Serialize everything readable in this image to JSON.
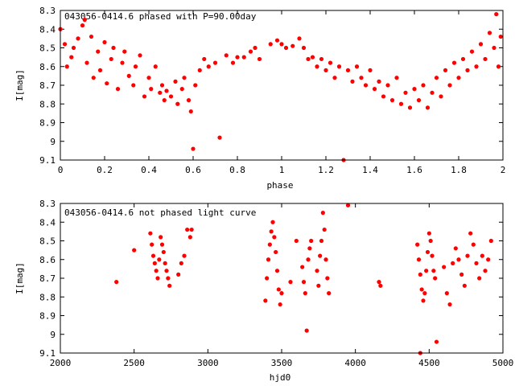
{
  "chart_data": [
    {
      "type": "scatter",
      "title": "043056-0414.6 phased with P=90.00day",
      "xlabel": "phase",
      "ylabel": "I[mag]",
      "xlim": [
        0,
        2
      ],
      "ylim": [
        9.1,
        8.3
      ],
      "y_inverted": true,
      "xticks": [
        "0",
        "0.2",
        "0.4",
        "0.6",
        "0.8",
        "1",
        "1.2",
        "1.4",
        "1.6",
        "1.8",
        "2"
      ],
      "xtick_values": [
        0,
        0.2,
        0.4,
        0.6,
        0.8,
        1.0,
        1.2,
        1.4,
        1.6,
        1.8,
        2.0
      ],
      "yticks": [
        "8.3",
        "8.4",
        "8.5",
        "8.6",
        "8.7",
        "8.8",
        "8.9",
        "9",
        "9.1"
      ],
      "ytick_values": [
        8.3,
        8.4,
        8.5,
        8.6,
        8.7,
        8.8,
        8.9,
        9.0,
        9.1
      ],
      "marker_color": "#ff0000",
      "grid": false,
      "points": [
        [
          0.0,
          8.4
        ],
        [
          0.02,
          8.48
        ],
        [
          0.03,
          8.6
        ],
        [
          0.05,
          8.55
        ],
        [
          0.06,
          8.5
        ],
        [
          0.08,
          8.45
        ],
        [
          0.1,
          8.38
        ],
        [
          0.11,
          8.35
        ],
        [
          0.12,
          8.58
        ],
        [
          0.14,
          8.44
        ],
        [
          0.15,
          8.66
        ],
        [
          0.17,
          8.52
        ],
        [
          0.18,
          8.62
        ],
        [
          0.2,
          8.47
        ],
        [
          0.21,
          8.69
        ],
        [
          0.23,
          8.56
        ],
        [
          0.24,
          8.5
        ],
        [
          0.26,
          8.72
        ],
        [
          0.28,
          8.58
        ],
        [
          0.29,
          8.52
        ],
        [
          0.31,
          8.65
        ],
        [
          0.33,
          8.7
        ],
        [
          0.34,
          8.6
        ],
        [
          0.36,
          8.54
        ],
        [
          0.38,
          8.76
        ],
        [
          0.4,
          8.66
        ],
        [
          0.41,
          8.72
        ],
        [
          0.43,
          8.6
        ],
        [
          0.45,
          8.74
        ],
        [
          0.46,
          8.7
        ],
        [
          0.47,
          8.78
        ],
        [
          0.48,
          8.73
        ],
        [
          0.5,
          8.76
        ],
        [
          0.52,
          8.68
        ],
        [
          0.53,
          8.8
        ],
        [
          0.55,
          8.72
        ],
        [
          0.56,
          8.66
        ],
        [
          0.58,
          8.78
        ],
        [
          0.59,
          8.84
        ],
        [
          0.6,
          9.04
        ],
        [
          0.61,
          8.7
        ],
        [
          0.63,
          8.62
        ],
        [
          0.65,
          8.56
        ],
        [
          0.67,
          8.6
        ],
        [
          0.7,
          8.58
        ],
        [
          0.72,
          8.98
        ],
        [
          0.75,
          8.54
        ],
        [
          0.78,
          8.58
        ],
        [
          0.8,
          8.55
        ],
        [
          0.83,
          8.55
        ],
        [
          0.86,
          8.52
        ],
        [
          0.88,
          8.5
        ],
        [
          0.9,
          8.56
        ],
        [
          0.95,
          8.48
        ],
        [
          0.98,
          8.46
        ],
        [
          1.0,
          8.48
        ],
        [
          1.02,
          8.5
        ],
        [
          1.05,
          8.49
        ],
        [
          1.08,
          8.45
        ],
        [
          1.1,
          8.5
        ],
        [
          1.12,
          8.56
        ],
        [
          1.14,
          8.55
        ],
        [
          1.16,
          8.6
        ],
        [
          1.18,
          8.56
        ],
        [
          1.2,
          8.62
        ],
        [
          1.22,
          8.58
        ],
        [
          1.24,
          8.66
        ],
        [
          1.26,
          8.6
        ],
        [
          1.28,
          9.1
        ],
        [
          1.3,
          8.62
        ],
        [
          1.32,
          8.68
        ],
        [
          1.34,
          8.6
        ],
        [
          1.36,
          8.66
        ],
        [
          1.38,
          8.7
        ],
        [
          1.4,
          8.62
        ],
        [
          1.42,
          8.72
        ],
        [
          1.44,
          8.68
        ],
        [
          1.46,
          8.76
        ],
        [
          1.48,
          8.7
        ],
        [
          1.5,
          8.78
        ],
        [
          1.52,
          8.66
        ],
        [
          1.54,
          8.8
        ],
        [
          1.56,
          8.74
        ],
        [
          1.58,
          8.82
        ],
        [
          1.6,
          8.72
        ],
        [
          1.62,
          8.78
        ],
        [
          1.64,
          8.7
        ],
        [
          1.66,
          8.82
        ],
        [
          1.68,
          8.74
        ],
        [
          1.7,
          8.66
        ],
        [
          1.72,
          8.76
        ],
        [
          1.74,
          8.62
        ],
        [
          1.76,
          8.7
        ],
        [
          1.78,
          8.58
        ],
        [
          1.8,
          8.66
        ],
        [
          1.82,
          8.56
        ],
        [
          1.84,
          8.62
        ],
        [
          1.86,
          8.52
        ],
        [
          1.88,
          8.6
        ],
        [
          1.9,
          8.48
        ],
        [
          1.92,
          8.56
        ],
        [
          1.94,
          8.42
        ],
        [
          1.96,
          8.5
        ],
        [
          1.97,
          8.32
        ],
        [
          1.98,
          8.6
        ],
        [
          1.99,
          8.44
        ]
      ]
    },
    {
      "type": "scatter",
      "title": "043056-0414.6 not phased light curve",
      "xlabel": "hjd0",
      "ylabel": "I[mag]",
      "xlim": [
        2000,
        5000
      ],
      "ylim": [
        9.1,
        8.3
      ],
      "y_inverted": true,
      "xticks": [
        "2000",
        "2500",
        "3000",
        "3500",
        "4000",
        "4500",
        "5000"
      ],
      "xtick_values": [
        2000,
        2500,
        3000,
        3500,
        4000,
        4500,
        5000
      ],
      "yticks": [
        "8.3",
        "8.4",
        "8.5",
        "8.6",
        "8.7",
        "8.8",
        "8.9",
        "9",
        "9.1"
      ],
      "ytick_values": [
        8.3,
        8.4,
        8.5,
        8.6,
        8.7,
        8.8,
        8.9,
        9.0,
        9.1
      ],
      "marker_color": "#ff0000",
      "grid": false,
      "points": [
        [
          2380,
          8.72
        ],
        [
          2500,
          8.55
        ],
        [
          2610,
          8.46
        ],
        [
          2620,
          8.52
        ],
        [
          2630,
          8.58
        ],
        [
          2640,
          8.62
        ],
        [
          2650,
          8.66
        ],
        [
          2660,
          8.7
        ],
        [
          2670,
          8.6
        ],
        [
          2680,
          8.48
        ],
        [
          2690,
          8.52
        ],
        [
          2700,
          8.56
        ],
        [
          2710,
          8.62
        ],
        [
          2720,
          8.66
        ],
        [
          2730,
          8.7
        ],
        [
          2740,
          8.74
        ],
        [
          2800,
          8.68
        ],
        [
          2820,
          8.62
        ],
        [
          2840,
          8.58
        ],
        [
          2860,
          8.44
        ],
        [
          2880,
          8.48
        ],
        [
          2890,
          8.44
        ],
        [
          3390,
          8.82
        ],
        [
          3400,
          8.7
        ],
        [
          3410,
          8.6
        ],
        [
          3420,
          8.52
        ],
        [
          3430,
          8.45
        ],
        [
          3440,
          8.4
        ],
        [
          3450,
          8.48
        ],
        [
          3460,
          8.56
        ],
        [
          3470,
          8.66
        ],
        [
          3480,
          8.76
        ],
        [
          3490,
          8.84
        ],
        [
          3500,
          8.78
        ],
        [
          3560,
          8.72
        ],
        [
          3600,
          8.5
        ],
        [
          3640,
          8.64
        ],
        [
          3650,
          8.72
        ],
        [
          3660,
          8.78
        ],
        [
          3670,
          8.98
        ],
        [
          3680,
          8.6
        ],
        [
          3690,
          8.54
        ],
        [
          3700,
          8.5
        ],
        [
          3740,
          8.66
        ],
        [
          3750,
          8.74
        ],
        [
          3760,
          8.58
        ],
        [
          3770,
          8.5
        ],
        [
          3780,
          8.35
        ],
        [
          3790,
          8.44
        ],
        [
          3800,
          8.6
        ],
        [
          3810,
          8.7
        ],
        [
          3820,
          8.78
        ],
        [
          3950,
          8.31
        ],
        [
          4160,
          8.72
        ],
        [
          4170,
          8.74
        ],
        [
          4420,
          8.52
        ],
        [
          4430,
          8.6
        ],
        [
          4440,
          8.68
        ],
        [
          4450,
          8.76
        ],
        [
          4460,
          8.82
        ],
        [
          4470,
          8.78
        ],
        [
          4480,
          8.66
        ],
        [
          4490,
          8.56
        ],
        [
          4500,
          8.46
        ],
        [
          4510,
          8.5
        ],
        [
          4520,
          8.58
        ],
        [
          4530,
          8.66
        ],
        [
          4540,
          8.7
        ],
        [
          4550,
          9.04
        ],
        [
          4600,
          8.64
        ],
        [
          4620,
          8.78
        ],
        [
          4640,
          8.84
        ],
        [
          4660,
          8.62
        ],
        [
          4680,
          8.54
        ],
        [
          4700,
          8.6
        ],
        [
          4720,
          8.68
        ],
        [
          4740,
          8.74
        ],
        [
          4760,
          8.58
        ],
        [
          4780,
          8.46
        ],
        [
          4800,
          8.52
        ],
        [
          4820,
          8.62
        ],
        [
          4840,
          8.7
        ],
        [
          4860,
          8.58
        ],
        [
          4880,
          8.66
        ],
        [
          4900,
          8.6
        ],
        [
          4920,
          8.5
        ],
        [
          4440,
          9.1
        ]
      ]
    }
  ]
}
